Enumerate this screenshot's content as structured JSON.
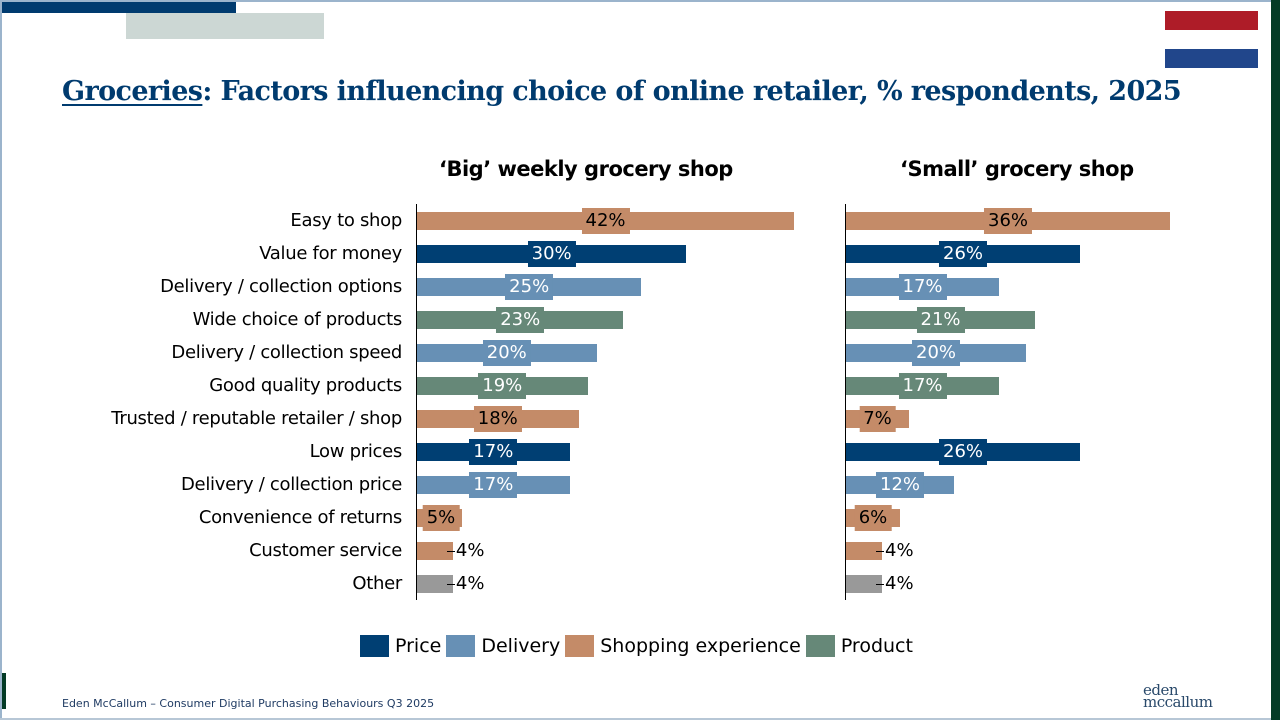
{
  "header": {
    "title_prefix": "Groceries",
    "title_rest": ": Factors influencing choice of online retailer, % respondents, 2025"
  },
  "colors": {
    "price": "#003f73",
    "delivery": "#6790b5",
    "shopping_experience": "#c48b68",
    "product": "#668878",
    "other": "#999999",
    "title": "#003b6f",
    "flag_red": "#ae1c28",
    "flag_blue": "#21468b"
  },
  "chart_data": [
    {
      "type": "bar",
      "orientation": "horizontal",
      "title": "‘Big’ weekly grocery shop",
      "categories": [
        "Easy to shop",
        "Value for money",
        "Delivery / collection options",
        "Wide choice of products",
        "Delivery / collection speed",
        "Good quality products",
        "Trusted / reputable retailer / shop",
        "Low prices",
        "Delivery / collection price",
        "Convenience of returns",
        "Customer service",
        "Other"
      ],
      "values": [
        42,
        30,
        25,
        23,
        20,
        19,
        18,
        17,
        17,
        5,
        4,
        4
      ],
      "labels": [
        "42%",
        "30%",
        "25%",
        "23%",
        "20%",
        "19%",
        "18%",
        "17%",
        "17%",
        "5%",
        "4%",
        "4%"
      ],
      "groups": [
        "shopping_experience",
        "price",
        "delivery",
        "product",
        "delivery",
        "product",
        "shopping_experience",
        "price",
        "delivery",
        "shopping_experience",
        "shopping_experience",
        "other"
      ],
      "xlim": [
        0,
        42
      ],
      "unit": "%",
      "grid": false
    },
    {
      "type": "bar",
      "orientation": "horizontal",
      "title": "‘Small’ grocery shop",
      "categories": [
        "Easy to shop",
        "Value for money",
        "Delivery / collection options",
        "Wide choice of products",
        "Delivery / collection speed",
        "Good quality products",
        "Trusted / reputable retailer / shop",
        "Low prices",
        "Delivery / collection price",
        "Convenience of returns",
        "Customer service",
        "Other"
      ],
      "values": [
        36,
        26,
        17,
        21,
        20,
        17,
        7,
        26,
        12,
        6,
        4,
        4
      ],
      "labels": [
        "36%",
        "26%",
        "17%",
        "21%",
        "20%",
        "17%",
        "7%",
        "26%",
        "12%",
        "6%",
        "4%",
        "4%"
      ],
      "groups": [
        "shopping_experience",
        "price",
        "delivery",
        "product",
        "delivery",
        "product",
        "shopping_experience",
        "price",
        "delivery",
        "shopping_experience",
        "shopping_experience",
        "other"
      ],
      "xlim": [
        0,
        36
      ],
      "unit": "%",
      "grid": false
    }
  ],
  "legend": [
    {
      "key": "price",
      "label": "Price"
    },
    {
      "key": "delivery",
      "label": "Delivery"
    },
    {
      "key": "shopping_experience",
      "label": "Shopping experience"
    },
    {
      "key": "product",
      "label": "Product"
    }
  ],
  "legend_placement": "bottom",
  "footer": {
    "source": "Eden McCallum – Consumer Digital Purchasing Behaviours Q3 2025",
    "logo_line1": "eden",
    "logo_line2": "mccallum"
  }
}
